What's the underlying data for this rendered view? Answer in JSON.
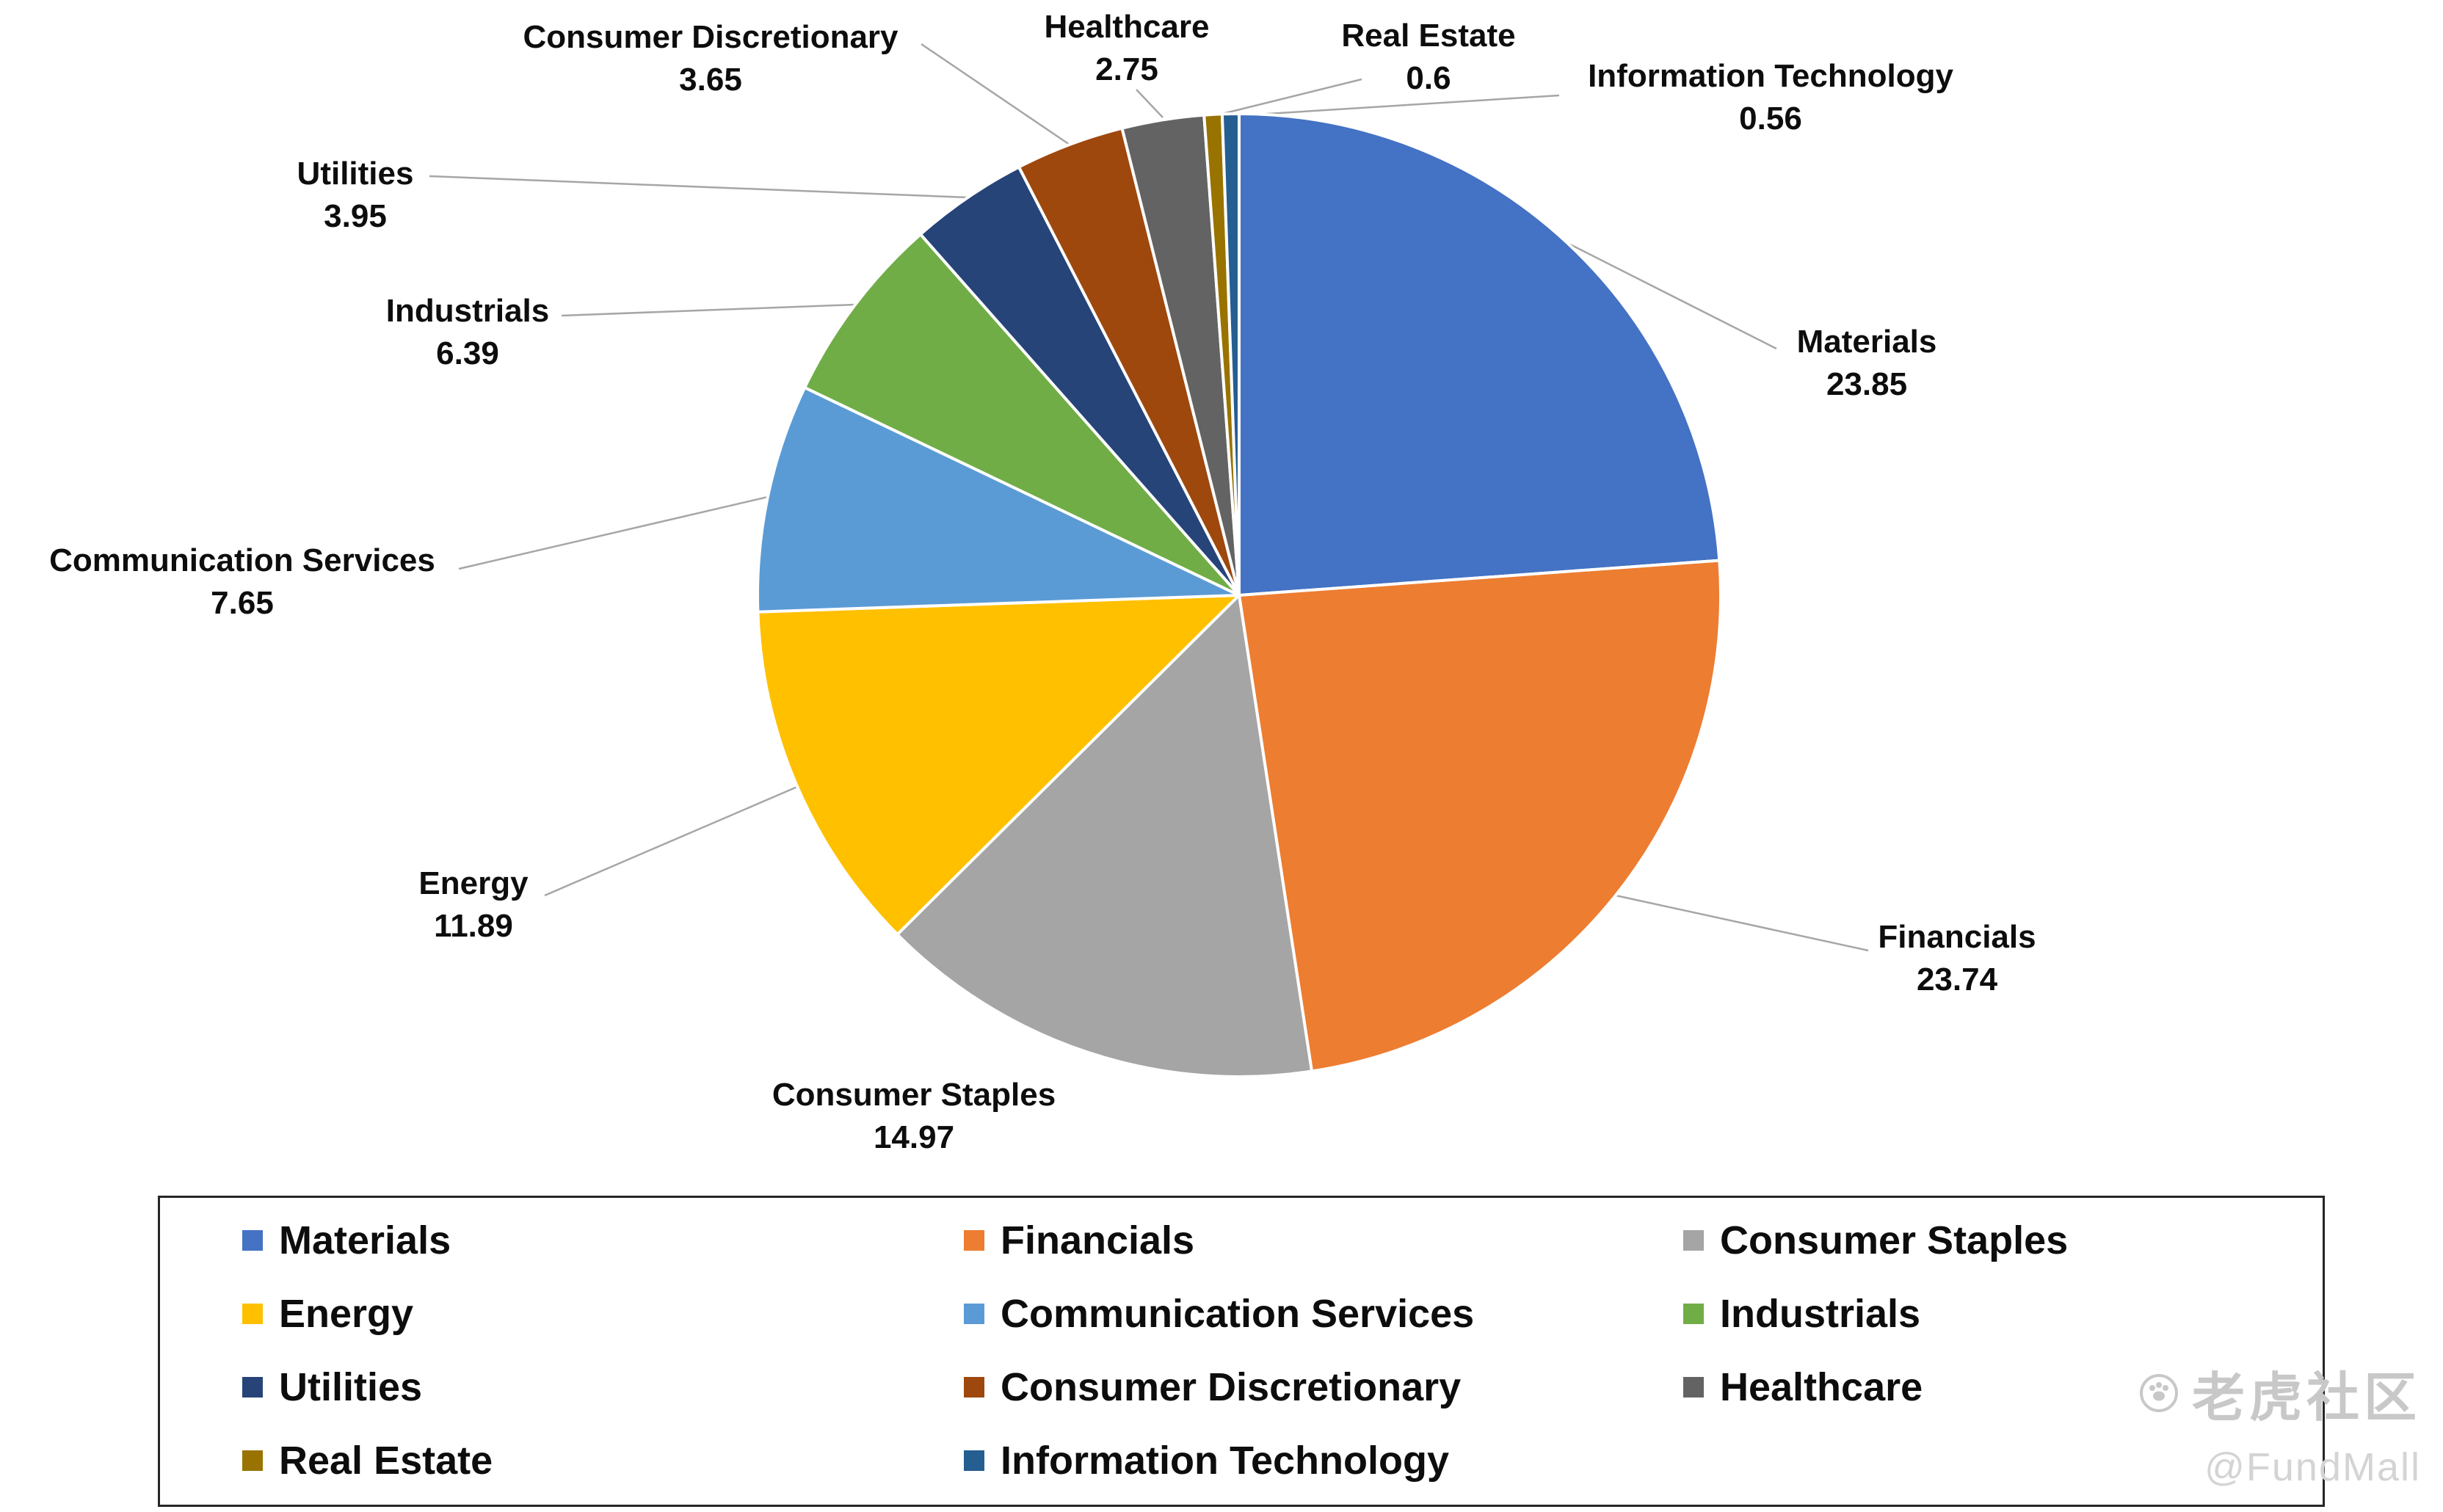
{
  "chart_data": {
    "type": "pie",
    "title": "",
    "categories": [
      "Materials",
      "Financials",
      "Consumer Staples",
      "Energy",
      "Communication Services",
      "Industrials",
      "Utilities",
      "Consumer Discretionary",
      "Healthcare",
      "Real Estate",
      "Information Technology"
    ],
    "values": [
      23.85,
      23.74,
      14.97,
      11.89,
      7.65,
      6.39,
      3.95,
      3.65,
      2.75,
      0.6,
      0.56
    ],
    "value_labels": [
      "23.85",
      "23.74",
      "14.97",
      "11.89",
      "7.65",
      "6.39",
      "3.95",
      "3.65",
      "2.75",
      "0.6",
      "0.56"
    ],
    "colors": [
      "#4472C4",
      "#ED7D31",
      "#A5A5A5",
      "#FFC000",
      "#5B9BD5",
      "#70AD47",
      "#264478",
      "#9E480E",
      "#636363",
      "#997300",
      "#255E91"
    ],
    "start_angle_deg": 0,
    "direction": "clockwise",
    "slice_border_color": "#FFFFFF",
    "leader_line_color": "#A6A6A6",
    "legend_position": "bottom",
    "legend_columns": 3,
    "legend_entries": [
      "Materials",
      "Financials",
      "Consumer Staples",
      "Energy",
      "Communication Services",
      "Industrials",
      "Utilities",
      "Consumer Discretionary",
      "Healthcare",
      "Real Estate",
      "Information Technology"
    ]
  },
  "watermark": {
    "brand": "老虎社区",
    "handle": "@FundMall"
  }
}
